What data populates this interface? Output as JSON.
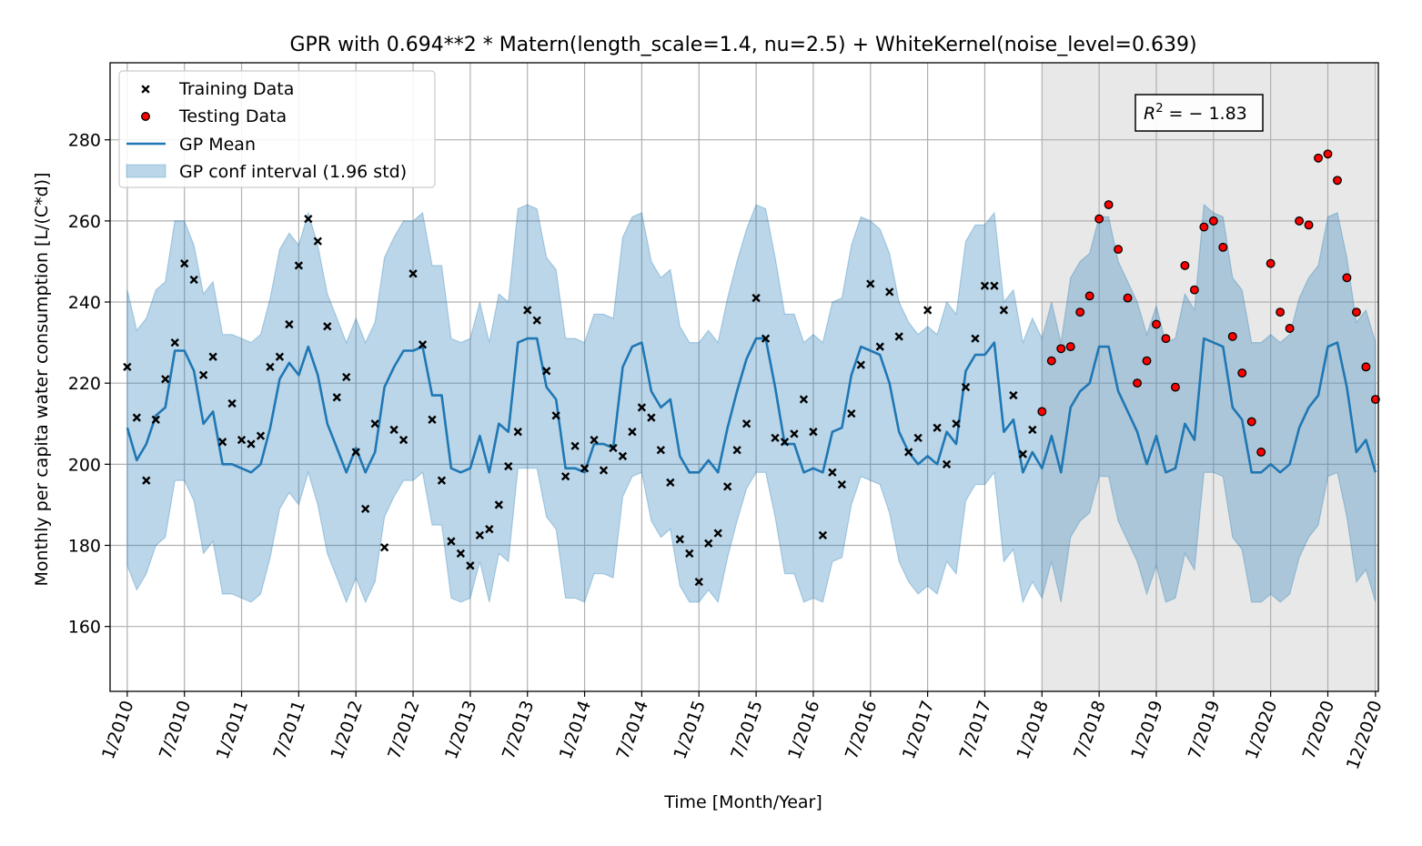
{
  "chart_data": {
    "type": "line",
    "title": "GPR with 0.694**2 * Matern(length_scale=1.4, nu=2.5) + WhiteKernel(noise_level=0.639)",
    "xlabel": "Time [Month/Year]",
    "ylabel": "Monthly per capita water consumption [L/(C*d)]",
    "ylim": [
      144,
      299
    ],
    "yticks": [
      160,
      180,
      200,
      220,
      240,
      260,
      280
    ],
    "xlim": [
      -1.8,
      131.3
    ],
    "xticks": [
      {
        "index": 0,
        "label": "1/2010"
      },
      {
        "index": 6,
        "label": "7/2010"
      },
      {
        "index": 12,
        "label": "1/2011"
      },
      {
        "index": 18,
        "label": "7/2011"
      },
      {
        "index": 24,
        "label": "1/2012"
      },
      {
        "index": 30,
        "label": "7/2012"
      },
      {
        "index": 36,
        "label": "1/2013"
      },
      {
        "index": 42,
        "label": "7/2013"
      },
      {
        "index": 48,
        "label": "1/2014"
      },
      {
        "index": 54,
        "label": "7/2014"
      },
      {
        "index": 60,
        "label": "1/2015"
      },
      {
        "index": 66,
        "label": "7/2015"
      },
      {
        "index": 72,
        "label": "1/2016"
      },
      {
        "index": 78,
        "label": "7/2016"
      },
      {
        "index": 84,
        "label": "1/2017"
      },
      {
        "index": 90,
        "label": "7/2017"
      },
      {
        "index": 96,
        "label": "1/2018"
      },
      {
        "index": 102,
        "label": "7/2018"
      },
      {
        "index": 108,
        "label": "1/2019"
      },
      {
        "index": 114,
        "label": "7/2019"
      },
      {
        "index": 120,
        "label": "1/2020"
      },
      {
        "index": 126,
        "label": "7/2020"
      },
      {
        "index": 131,
        "label": "12/2020"
      }
    ],
    "test_region": [
      96,
      131
    ],
    "annotation": {
      "prefix": "R",
      "superscript": "2",
      "suffix": " = − 1.83"
    },
    "grid": true,
    "legend_position": "top-left",
    "legend": [
      "Training Data",
      "Testing Data",
      "GP Mean",
      "GP conf interval (1.96 std)"
    ],
    "colors": {
      "mean": "#1f77b4",
      "band": "#1f77b4",
      "testing": "#ff0000",
      "training": "#000000",
      "test_region": "#e8e8e8"
    },
    "gp_mean": [
      209,
      201,
      205,
      212,
      214,
      228,
      228,
      223,
      210,
      213,
      200,
      200,
      199,
      198,
      200,
      209,
      221,
      225,
      222,
      229,
      222,
      210,
      204,
      198,
      204,
      198,
      203,
      219,
      224,
      228,
      228,
      229,
      217,
      217,
      199,
      198,
      199,
      207,
      198,
      210,
      208,
      230,
      231,
      231,
      219,
      216,
      199,
      199,
      198,
      205,
      205,
      204,
      224,
      229,
      230,
      218,
      214,
      216,
      202,
      198,
      198,
      201,
      198,
      209,
      218,
      226,
      231,
      231,
      219,
      205,
      205,
      198,
      199,
      198,
      208,
      209,
      222,
      229,
      228,
      227,
      220,
      208,
      203,
      200,
      202,
      200,
      208,
      205,
      223,
      227,
      227,
      230,
      208,
      211,
      198,
      203,
      199,
      207,
      198,
      214,
      218,
      220,
      229,
      229,
      218,
      213,
      208,
      200,
      207,
      198,
      199,
      210,
      206,
      231,
      230,
      229,
      214,
      211,
      198,
      198,
      200,
      198,
      200,
      209,
      214,
      217,
      229,
      230,
      219,
      203,
      206,
      198
    ],
    "gp_upper": [
      243,
      233,
      236,
      243,
      245,
      260,
      260,
      254,
      242,
      245,
      232,
      232,
      231,
      230,
      232,
      241,
      253,
      257,
      254,
      262,
      254,
      242,
      236,
      230,
      236,
      230,
      235,
      251,
      256,
      260,
      260,
      262,
      249,
      249,
      231,
      230,
      231,
      240,
      230,
      242,
      240,
      263,
      264,
      263,
      251,
      248,
      231,
      231,
      230,
      237,
      237,
      236,
      256,
      261,
      262,
      250,
      246,
      248,
      234,
      230,
      230,
      233,
      230,
      241,
      250,
      258,
      264,
      263,
      251,
      237,
      237,
      230,
      232,
      230,
      240,
      241,
      254,
      261,
      260,
      258,
      252,
      240,
      235,
      232,
      234,
      232,
      240,
      237,
      255,
      259,
      259,
      262,
      240,
      243,
      230,
      236,
      231,
      240,
      230,
      246,
      250,
      252,
      261,
      261,
      250,
      245,
      240,
      232,
      239,
      230,
      231,
      242,
      238,
      264,
      262,
      261,
      246,
      243,
      230,
      230,
      232,
      230,
      232,
      241,
      246,
      249,
      261,
      262,
      251,
      235,
      238,
      230
    ],
    "gp_lower": [
      175,
      169,
      173,
      180,
      182,
      196,
      196,
      191,
      178,
      181,
      168,
      168,
      167,
      166,
      168,
      177,
      189,
      193,
      190,
      198,
      190,
      178,
      172,
      166,
      172,
      166,
      171,
      187,
      192,
      196,
      196,
      198,
      185,
      185,
      167,
      166,
      167,
      176,
      166,
      178,
      176,
      199,
      199,
      199,
      187,
      184,
      167,
      167,
      166,
      173,
      173,
      172,
      192,
      197,
      198,
      186,
      182,
      184,
      170,
      166,
      166,
      169,
      166,
      177,
      186,
      194,
      198,
      198,
      187,
      173,
      173,
      166,
      167,
      166,
      176,
      177,
      190,
      197,
      196,
      195,
      188,
      176,
      171,
      168,
      170,
      168,
      176,
      173,
      191,
      195,
      195,
      198,
      176,
      179,
      166,
      171,
      167,
      176,
      166,
      182,
      186,
      188,
      197,
      197,
      186,
      181,
      176,
      168,
      175,
      166,
      167,
      178,
      174,
      198,
      198,
      197,
      182,
      179,
      166,
      166,
      168,
      166,
      168,
      177,
      182,
      185,
      197,
      198,
      187,
      171,
      174,
      166
    ],
    "training": [
      224,
      211.5,
      196,
      211,
      221,
      230,
      249.5,
      245.5,
      222,
      226.5,
      205.5,
      215,
      206,
      205,
      207,
      224,
      226.5,
      234.5,
      249,
      260.5,
      255,
      234,
      216.5,
      221.5,
      203,
      189,
      210,
      179.5,
      208.5,
      206,
      247,
      229.5,
      211,
      196,
      181,
      178,
      175,
      182.5,
      184,
      190,
      199.5,
      208,
      238,
      235.5,
      223,
      212,
      197,
      204.5,
      199,
      206,
      198.5,
      204,
      202,
      208,
      214,
      211.5,
      203.5,
      195.5,
      181.5,
      178,
      171,
      180.5,
      183,
      194.5,
      203.5,
      210,
      241,
      231,
      206.5,
      205.5,
      207.5,
      216,
      208,
      182.5,
      198,
      195,
      212.5,
      224.5,
      244.5,
      229,
      242.5,
      231.5,
      203,
      206.5,
      238,
      209,
      200,
      210,
      219,
      231,
      244,
      244,
      238,
      217,
      202.5,
      208.5
    ],
    "testing": [
      213,
      225.5,
      228.5,
      229,
      237.5,
      241.5,
      260.5,
      264,
      253,
      241,
      220,
      225.5,
      234.5,
      231,
      219,
      249,
      243,
      258.5,
      260,
      253.5,
      231.5,
      222.5,
      210.5,
      203,
      249.5,
      237.5,
      233.5,
      260,
      259,
      275.5,
      276.5,
      270,
      246,
      237.5,
      224,
      216
    ]
  }
}
